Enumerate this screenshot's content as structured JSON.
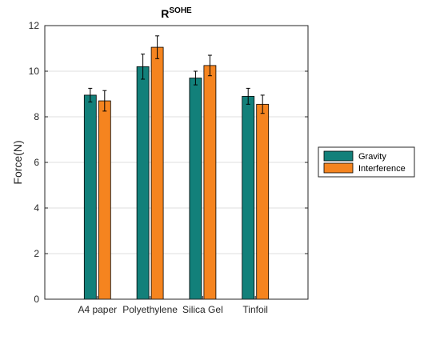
{
  "chart_data": {
    "type": "bar",
    "title": "R",
    "title_superscript": "SOHE",
    "xlabel": "",
    "ylabel": "Force(N)",
    "categories": [
      "A4 paper",
      "Polyethylene",
      "Silica Gel",
      "Tinfoil"
    ],
    "series": [
      {
        "name": "Gravity",
        "color": "#12807A",
        "values": [
          8.95,
          10.2,
          9.7,
          8.9
        ],
        "errors": [
          0.3,
          0.55,
          0.3,
          0.35
        ]
      },
      {
        "name": "Interference",
        "color": "#F5841F",
        "values": [
          8.7,
          11.05,
          10.25,
          8.55
        ],
        "errors": [
          0.45,
          0.5,
          0.45,
          0.4
        ]
      }
    ],
    "ylim": [
      0,
      12
    ],
    "yticks": [
      0,
      2,
      4,
      6,
      8,
      10,
      12
    ],
    "grid": true,
    "legend_position": "outside-right"
  }
}
